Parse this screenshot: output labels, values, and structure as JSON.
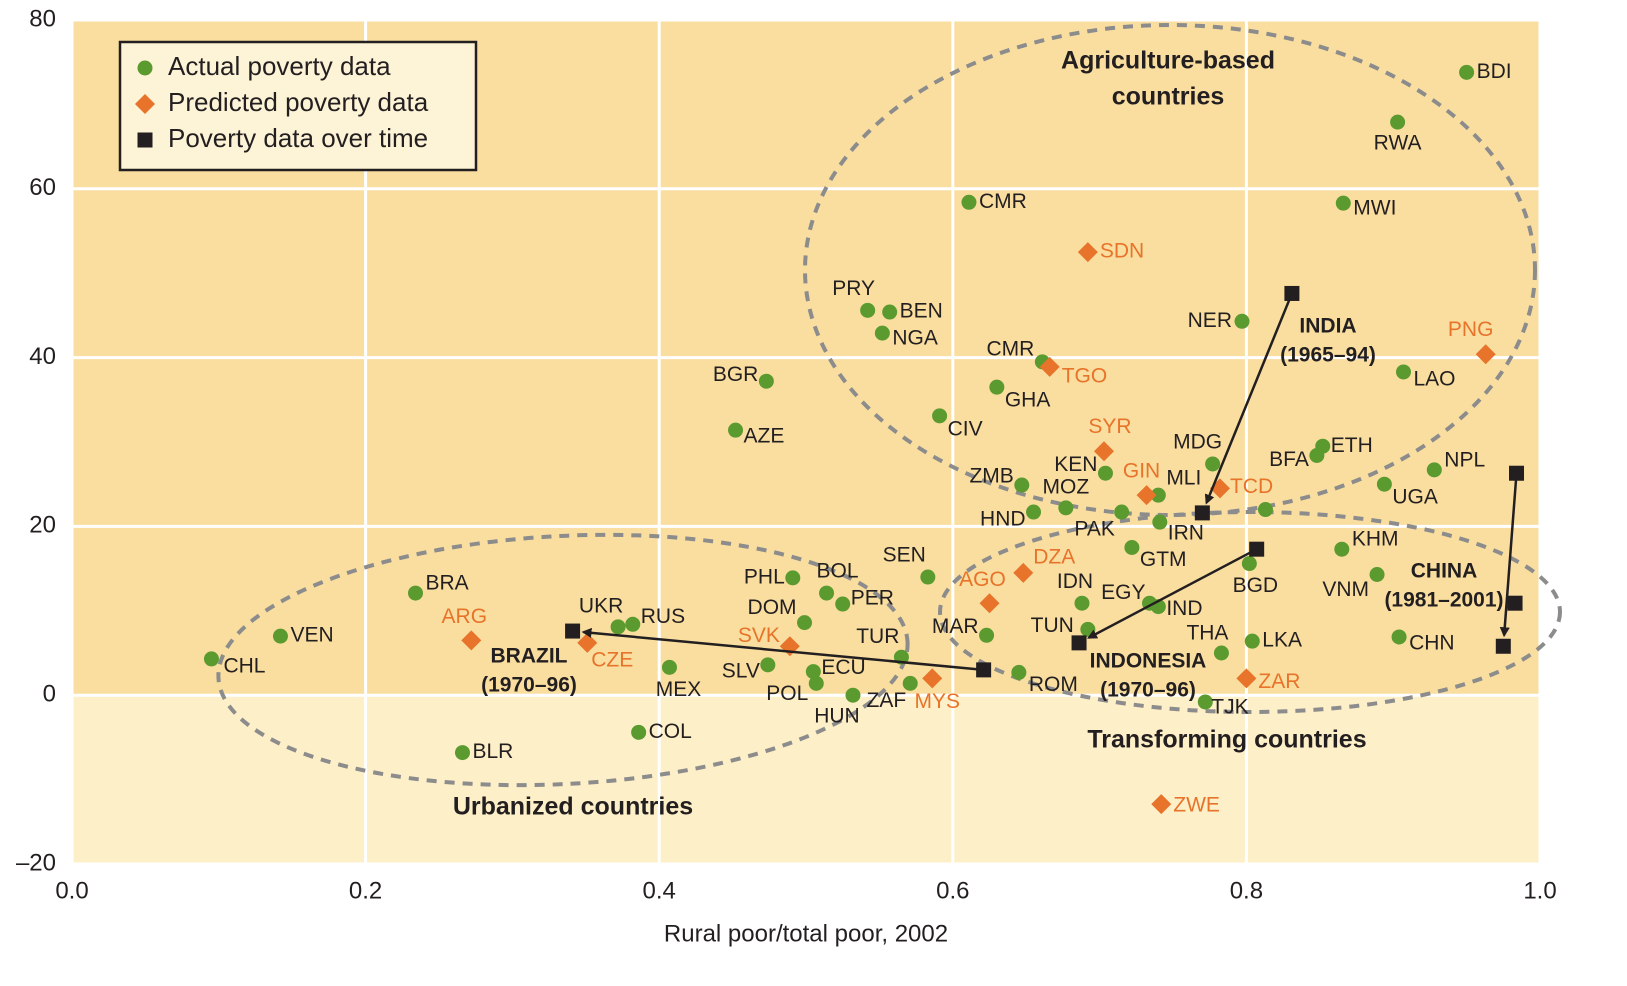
{
  "chart_data": {
    "type": "scatter",
    "x_label": "Rural poor/total poor, 2002",
    "xlim": [
      0,
      1
    ],
    "ylim": [
      -20,
      80
    ],
    "xticks": [
      {
        "value": 0,
        "label": "0.0"
      },
      0.2,
      0.4,
      0.6,
      0.8,
      {
        "value": 1,
        "label": "1.0"
      }
    ],
    "yticks": [
      {
        "value": -20,
        "label": "–20"
      },
      0,
      20,
      40,
      60,
      80
    ],
    "grid": true,
    "legend": "upper left",
    "annotations": [
      [
        "Agriculture-based",
        "countries"
      ],
      [
        "Urbanized countries"
      ],
      [
        "Transforming countries"
      ]
    ],
    "series": [
      {
        "name": "Actual poverty data",
        "color": "#5b9a2e",
        "marker": "circle",
        "labels": [
          "BDI",
          "RWA",
          "MWI",
          "CMR",
          "PRY",
          "BEN",
          "NGA",
          "NER",
          "CMR",
          "LAO",
          "BGR",
          "GHA",
          "CIV",
          "AZE",
          "ETH",
          "BFA",
          "MDG",
          "NPL",
          "KEN",
          "UGA",
          "ZMB",
          "MLI",
          null,
          "MOZ",
          "HND",
          "PAK",
          "IRN",
          "GTM",
          "KHM",
          "BGD",
          "SEN",
          "VNM",
          "PHL",
          "BOL",
          "BRA",
          "PER",
          "IDN",
          "EGY",
          "IND",
          "DOM",
          "RUS",
          "UKR",
          "TUN",
          "MAR",
          "CHN",
          "VEN",
          "LKA",
          "THA",
          "TUR",
          "CHL",
          "SLV",
          "MEX",
          "ECU",
          "ROM",
          "POL",
          "ZAF",
          "HUN",
          "TJK",
          "COL",
          "BLR"
        ],
        "x": [
          0.95,
          0.903,
          0.866,
          0.611,
          0.542,
          0.557,
          0.552,
          0.797,
          0.661,
          0.907,
          0.473,
          0.63,
          0.591,
          0.452,
          0.852,
          0.848,
          0.777,
          0.928,
          0.704,
          0.894,
          0.647,
          0.74,
          0.813,
          0.677,
          0.655,
          0.715,
          0.741,
          0.722,
          0.865,
          0.802,
          0.583,
          0.889,
          0.491,
          0.514,
          0.234,
          0.525,
          0.688,
          0.734,
          0.74,
          0.499,
          0.382,
          0.372,
          0.692,
          0.623,
          0.904,
          0.142,
          0.804,
          0.783,
          0.565,
          0.095,
          0.474,
          0.407,
          0.505,
          0.645,
          0.507,
          0.571,
          0.532,
          0.772,
          0.386,
          0.266
        ],
        "y": [
          73.8,
          67.9,
          58.3,
          58.4,
          45.6,
          45.4,
          42.9,
          44.3,
          39.5,
          38.3,
          37.2,
          36.5,
          33.1,
          31.4,
          29.5,
          28.4,
          27.4,
          26.7,
          26.3,
          25.0,
          24.9,
          23.7,
          22.0,
          22.2,
          21.7,
          21.7,
          20.5,
          17.5,
          17.3,
          15.6,
          14.0,
          14.3,
          13.9,
          12.1,
          12.1,
          10.8,
          10.9,
          10.9,
          10.5,
          8.6,
          8.4,
          8.1,
          7.8,
          7.1,
          6.9,
          7.0,
          6.4,
          5.0,
          4.5,
          4.3,
          3.6,
          3.3,
          2.8,
          2.7,
          1.4,
          1.4,
          0.0,
          -0.8,
          -4.4,
          -6.8
        ]
      },
      {
        "name": "Predicted poverty data",
        "color": "#e8732a",
        "marker": "diamond",
        "labels": [
          "SDN",
          "PNG",
          "TGO",
          "SYR",
          "GIN",
          "TCD",
          "DZA",
          "AGO",
          "ARG",
          "SVK",
          "CZE",
          "MYS",
          "ZAR",
          "ZWE"
        ],
        "x": [
          0.692,
          0.963,
          0.666,
          0.703,
          0.732,
          0.782,
          0.648,
          0.625,
          0.272,
          0.489,
          0.351,
          0.586,
          0.8,
          0.742
        ],
        "y": [
          52.5,
          40.4,
          38.9,
          28.9,
          23.7,
          24.5,
          14.5,
          10.9,
          6.5,
          5.8,
          6.2,
          2.0,
          2.0,
          -12.9
        ]
      },
      {
        "name": "Poverty data over time",
        "color": "#231f20",
        "marker": "square",
        "paths": [
          {
            "label": "INDIA",
            "period": "(1965–94)",
            "x": [
              0.831,
              0.77
            ],
            "y": [
              47.6,
              21.6
            ]
          },
          {
            "label": "INDONESIA",
            "period": "(1970–96)",
            "x": [
              0.807,
              0.686
            ],
            "y": [
              17.3,
              6.2
            ]
          },
          {
            "label": "BRAZIL",
            "period": "(1970–96)",
            "x": [
              0.621,
              0.341
            ],
            "y": [
              3.0,
              7.6
            ]
          },
          {
            "label": "CHINA",
            "period": "(1981–2001)",
            "x": [
              0.984,
              0.983,
              0.975
            ],
            "y": [
              26.3,
              10.9,
              5.8
            ]
          }
        ]
      }
    ]
  }
}
